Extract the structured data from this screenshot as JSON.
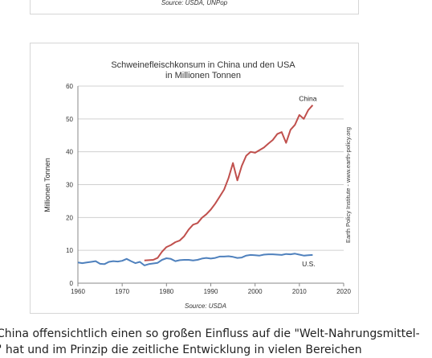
{
  "top_card": {
    "source": "Source: USDA, UNPop"
  },
  "chart_data": {
    "type": "line",
    "title": "Schweinefleischkonsum in China und den USA",
    "subtitle": "in Millionen Tonnen",
    "ylabel": "Millionen Tonnen",
    "xlabel": "",
    "xlim": [
      1960,
      2020
    ],
    "ylim": [
      0,
      60
    ],
    "x_ticks": [
      1960,
      1970,
      1980,
      1990,
      2000,
      2010,
      2020
    ],
    "y_ticks": [
      0,
      10,
      20,
      30,
      40,
      50,
      60
    ],
    "grid": "horizontal",
    "side_note": "Earth Policy Institute - www.earth-policy.org",
    "source": "Source: USDA",
    "series": [
      {
        "name": "China",
        "color": "#c0504d",
        "x": [
          1975,
          1976,
          1977,
          1978,
          1979,
          1980,
          1981,
          1982,
          1983,
          1984,
          1985,
          1986,
          1987,
          1988,
          1989,
          1990,
          1991,
          1992,
          1993,
          1994,
          1995,
          1996,
          1997,
          1998,
          1999,
          2000,
          2001,
          2002,
          2003,
          2004,
          2005,
          2006,
          2007,
          2008,
          2009,
          2010,
          2011,
          2012,
          2013
        ],
        "y": [
          6.9,
          7.0,
          7.1,
          7.7,
          9.6,
          11.0,
          11.6,
          12.5,
          13.0,
          14.3,
          16.3,
          17.8,
          18.3,
          19.9,
          21.0,
          22.4,
          24.2,
          26.3,
          28.5,
          32.0,
          36.6,
          31.3,
          35.7,
          38.8,
          40.0,
          39.7,
          40.5,
          41.3,
          42.5,
          43.6,
          45.4,
          46.0,
          42.7,
          46.7,
          48.2,
          51.2,
          50.0,
          52.7,
          54.2
        ]
      },
      {
        "name": "U.S.",
        "color": "#4f81bd",
        "x": [
          1960,
          1961,
          1962,
          1963,
          1964,
          1965,
          1966,
          1967,
          1968,
          1969,
          1970,
          1971,
          1972,
          1973,
          1974,
          1975,
          1976,
          1977,
          1978,
          1979,
          1980,
          1981,
          1982,
          1983,
          1984,
          1985,
          1986,
          1987,
          1988,
          1989,
          1990,
          1991,
          1992,
          1993,
          1994,
          1995,
          1996,
          1997,
          1998,
          1999,
          2000,
          2001,
          2002,
          2003,
          2004,
          2005,
          2006,
          2007,
          2008,
          2009,
          2010,
          2011,
          2012,
          2013
        ],
        "y": [
          6.3,
          6.1,
          6.3,
          6.5,
          6.7,
          5.9,
          5.8,
          6.5,
          6.7,
          6.6,
          6.8,
          7.4,
          6.7,
          6.1,
          6.5,
          5.4,
          5.8,
          6.0,
          6.2,
          7.1,
          7.6,
          7.4,
          6.7,
          7.0,
          7.1,
          7.1,
          6.9,
          7.1,
          7.5,
          7.7,
          7.5,
          7.7,
          8.1,
          8.1,
          8.2,
          8.0,
          7.7,
          7.8,
          8.4,
          8.6,
          8.5,
          8.4,
          8.7,
          8.8,
          8.8,
          8.7,
          8.6,
          8.9,
          8.8,
          9.0,
          8.7,
          8.4,
          8.5,
          8.6
        ]
      }
    ]
  },
  "body_text": {
    "line1": "China offensichtlich einen so großen Einfluss auf die \"Welt-Nahrungsmittel-",
    "line2": "\" hat und im Prinzip die zeitliche Entwicklung in vielen Bereichen"
  }
}
